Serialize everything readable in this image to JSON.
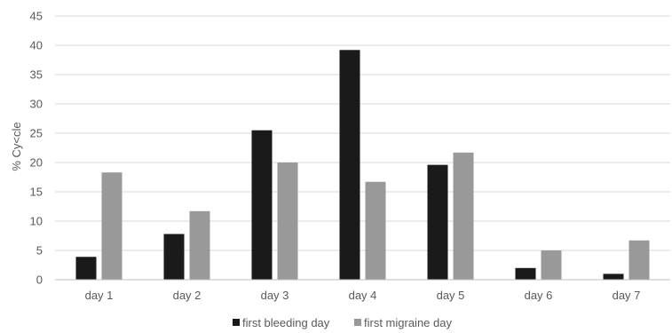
{
  "chart_data": {
    "type": "bar",
    "ylabel": "% Cy<cle",
    "xlabel": "",
    "ylim": [
      0,
      45
    ],
    "yticks": [
      0,
      5,
      10,
      15,
      20,
      25,
      30,
      35,
      40,
      45
    ],
    "grid": true,
    "legend_position": "bottom",
    "categories": [
      "day 1",
      "day 2",
      "day 3",
      "day 4",
      "day 5",
      "day 6",
      "day 7"
    ],
    "series": [
      {
        "name": "first bleeding day",
        "color": "#1a1a1a",
        "values": [
          3.9,
          7.8,
          25.5,
          39.2,
          19.6,
          2.0,
          1.0
        ]
      },
      {
        "name": "first migraine day",
        "color": "#999999",
        "values": [
          18.3,
          11.7,
          20.0,
          16.7,
          21.7,
          5.0,
          6.7
        ]
      }
    ]
  }
}
